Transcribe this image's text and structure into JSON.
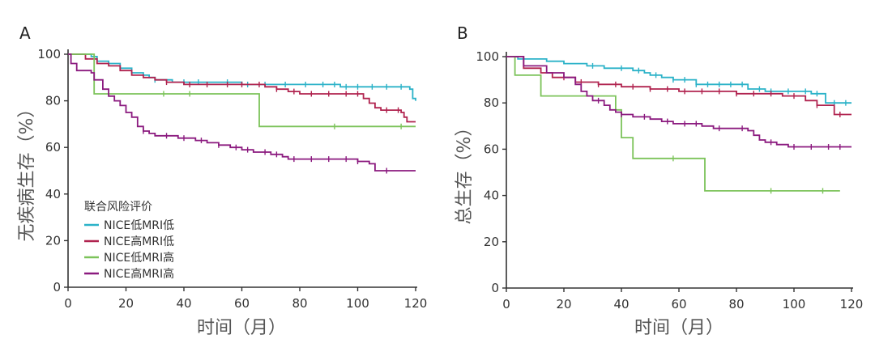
{
  "colors": {
    "axis": "#333333",
    "text": "#333333",
    "series": [
      "#2bb2c8",
      "#b0234f",
      "#7cc35a",
      "#8b1a7f"
    ]
  },
  "chart_data": [
    {
      "type": "line",
      "panel_label": "A",
      "ylabel": "无疾病生存（%）",
      "xlabel": "时间（月）",
      "xlim": [
        0,
        120
      ],
      "ylim": [
        0,
        100
      ],
      "xticks": [
        "0",
        "20",
        "40",
        "60",
        "80",
        "100",
        "120"
      ],
      "yticks": [
        "0",
        "20",
        "40",
        "60",
        "80",
        "100"
      ],
      "legend_title": "联合风险评价",
      "legend_position": "bottom-left",
      "series": [
        {
          "name": "NICE低MRI低",
          "points": [
            [
              0,
              100
            ],
            [
              8,
              99
            ],
            [
              10,
              97
            ],
            [
              14,
              96
            ],
            [
              18,
              94
            ],
            [
              22,
              92
            ],
            [
              26,
              91
            ],
            [
              28,
              90
            ],
            [
              30,
              89
            ],
            [
              36,
              88
            ],
            [
              50,
              88
            ],
            [
              60,
              87
            ],
            [
              80,
              87
            ],
            [
              90,
              87
            ],
            [
              94,
              86
            ],
            [
              100,
              86
            ],
            [
              118,
              85
            ],
            [
              119,
              81
            ],
            [
              120,
              80
            ]
          ],
          "censors": [
            30,
            40,
            45,
            55,
            62,
            68,
            75,
            82,
            88,
            92,
            96,
            100,
            105,
            110,
            115
          ]
        },
        {
          "name": "NICE高MRI低",
          "points": [
            [
              0,
              100
            ],
            [
              6,
              98
            ],
            [
              10,
              96
            ],
            [
              14,
              95
            ],
            [
              18,
              93
            ],
            [
              22,
              91
            ],
            [
              26,
              90
            ],
            [
              30,
              89
            ],
            [
              34,
              88
            ],
            [
              40,
              87
            ],
            [
              50,
              87
            ],
            [
              60,
              87
            ],
            [
              68,
              86
            ],
            [
              72,
              85
            ],
            [
              76,
              84
            ],
            [
              80,
              83
            ],
            [
              90,
              83
            ],
            [
              100,
              83
            ],
            [
              102,
              81
            ],
            [
              104,
              79
            ],
            [
              106,
              77
            ],
            [
              108,
              76
            ],
            [
              115,
              75
            ],
            [
              116,
              73
            ],
            [
              117,
              71
            ],
            [
              120,
              71
            ]
          ],
          "censors": [
            34,
            42,
            48,
            55,
            60,
            66,
            72,
            78,
            84,
            90,
            96,
            100,
            110,
            114
          ]
        },
        {
          "name": "NICE低MRI高",
          "points": [
            [
              0,
              100
            ],
            [
              9,
              100
            ],
            [
              9,
              83
            ],
            [
              66,
              83
            ],
            [
              66,
              69
            ],
            [
              120,
              69
            ]
          ],
          "censors": [
            33,
            42,
            92,
            115
          ]
        },
        {
          "name": "NICE高MRI高",
          "points": [
            [
              0,
              100
            ],
            [
              1,
              96
            ],
            [
              3,
              93
            ],
            [
              8,
              92
            ],
            [
              9,
              89
            ],
            [
              12,
              85
            ],
            [
              14,
              82
            ],
            [
              16,
              80
            ],
            [
              18,
              78
            ],
            [
              20,
              75
            ],
            [
              22,
              73
            ],
            [
              24,
              69
            ],
            [
              26,
              67
            ],
            [
              28,
              66
            ],
            [
              30,
              65
            ],
            [
              35,
              65
            ],
            [
              38,
              64
            ],
            [
              42,
              64
            ],
            [
              44,
              63
            ],
            [
              48,
              62
            ],
            [
              52,
              61
            ],
            [
              56,
              60
            ],
            [
              60,
              59
            ],
            [
              64,
              58
            ],
            [
              70,
              57
            ],
            [
              74,
              56
            ],
            [
              76,
              55
            ],
            [
              90,
              55
            ],
            [
              100,
              54
            ],
            [
              104,
              53
            ],
            [
              106,
              50
            ],
            [
              120,
              50
            ]
          ],
          "censors": [
            26,
            34,
            40,
            46,
            52,
            58,
            62,
            68,
            72,
            78,
            84,
            90,
            96,
            100,
            110
          ]
        }
      ]
    },
    {
      "type": "line",
      "panel_label": "B",
      "ylabel": "总生存（%）",
      "xlabel": "时间（月）",
      "xlim": [
        0,
        120
      ],
      "ylim": [
        0,
        100
      ],
      "xticks": [
        "0",
        "20",
        "40",
        "60",
        "80",
        "100",
        "120"
      ],
      "yticks": [
        "0",
        "20",
        "40",
        "60",
        "80",
        "100"
      ],
      "series": [
        {
          "name": "NICE低MRI低",
          "points": [
            [
              0,
              100
            ],
            [
              4,
              99
            ],
            [
              10,
              99
            ],
            [
              14,
              98
            ],
            [
              20,
              97
            ],
            [
              24,
              97
            ],
            [
              28,
              96
            ],
            [
              34,
              95
            ],
            [
              40,
              95
            ],
            [
              44,
              94
            ],
            [
              48,
              93
            ],
            [
              50,
              92
            ],
            [
              54,
              91
            ],
            [
              58,
              90
            ],
            [
              62,
              90
            ],
            [
              66,
              88
            ],
            [
              80,
              88
            ],
            [
              84,
              86
            ],
            [
              86,
              86
            ],
            [
              90,
              85
            ],
            [
              100,
              85
            ],
            [
              106,
              84
            ],
            [
              110,
              84
            ],
            [
              111,
              80
            ],
            [
              120,
              80
            ]
          ],
          "censors": [
            30,
            40,
            46,
            52,
            58,
            62,
            66,
            70,
            74,
            78,
            82,
            88,
            92,
            98,
            104,
            108,
            114,
            118
          ]
        },
        {
          "name": "NICE高MRI低",
          "points": [
            [
              0,
              100
            ],
            [
              6,
              95
            ],
            [
              12,
              93
            ],
            [
              16,
              91
            ],
            [
              24,
              89
            ],
            [
              32,
              88
            ],
            [
              40,
              87
            ],
            [
              50,
              86
            ],
            [
              56,
              86
            ],
            [
              60,
              85
            ],
            [
              70,
              85
            ],
            [
              80,
              84
            ],
            [
              90,
              84
            ],
            [
              96,
              83
            ],
            [
              100,
              83
            ],
            [
              104,
              81
            ],
            [
              108,
              79
            ],
            [
              112,
              79
            ],
            [
              114,
              75
            ],
            [
              120,
              75
            ]
          ],
          "censors": [
            20,
            26,
            32,
            38,
            44,
            50,
            56,
            62,
            68,
            74,
            80,
            86,
            92,
            100,
            108,
            116
          ]
        },
        {
          "name": "NICE低MRI高",
          "points": [
            [
              0,
              100
            ],
            [
              3,
              100
            ],
            [
              3,
              92
            ],
            [
              12,
              92
            ],
            [
              12,
              83
            ],
            [
              38,
              83
            ],
            [
              38,
              77
            ],
            [
              40,
              77
            ],
            [
              40,
              65
            ],
            [
              44,
              65
            ],
            [
              44,
              56
            ],
            [
              69,
              56
            ],
            [
              69,
              42
            ],
            [
              116,
              42
            ]
          ],
          "censors": [
            58,
            92,
            110
          ]
        },
        {
          "name": "NICE高MRI高",
          "points": [
            [
              0,
              100
            ],
            [
              6,
              96
            ],
            [
              14,
              93
            ],
            [
              20,
              91
            ],
            [
              24,
              88
            ],
            [
              26,
              85
            ],
            [
              28,
              83
            ],
            [
              30,
              81
            ],
            [
              34,
              79
            ],
            [
              36,
              77
            ],
            [
              38,
              76
            ],
            [
              40,
              75
            ],
            [
              44,
              74
            ],
            [
              50,
              73
            ],
            [
              54,
              72
            ],
            [
              58,
              71
            ],
            [
              62,
              71
            ],
            [
              68,
              70
            ],
            [
              72,
              69
            ],
            [
              80,
              69
            ],
            [
              84,
              68
            ],
            [
              86,
              66
            ],
            [
              88,
              64
            ],
            [
              90,
              63
            ],
            [
              94,
              62
            ],
            [
              98,
              61
            ],
            [
              110,
              61
            ],
            [
              120,
              61
            ]
          ],
          "censors": [
            32,
            40,
            48,
            56,
            62,
            66,
            74,
            82,
            92,
            100,
            106,
            112,
            116
          ]
        }
      ]
    }
  ]
}
